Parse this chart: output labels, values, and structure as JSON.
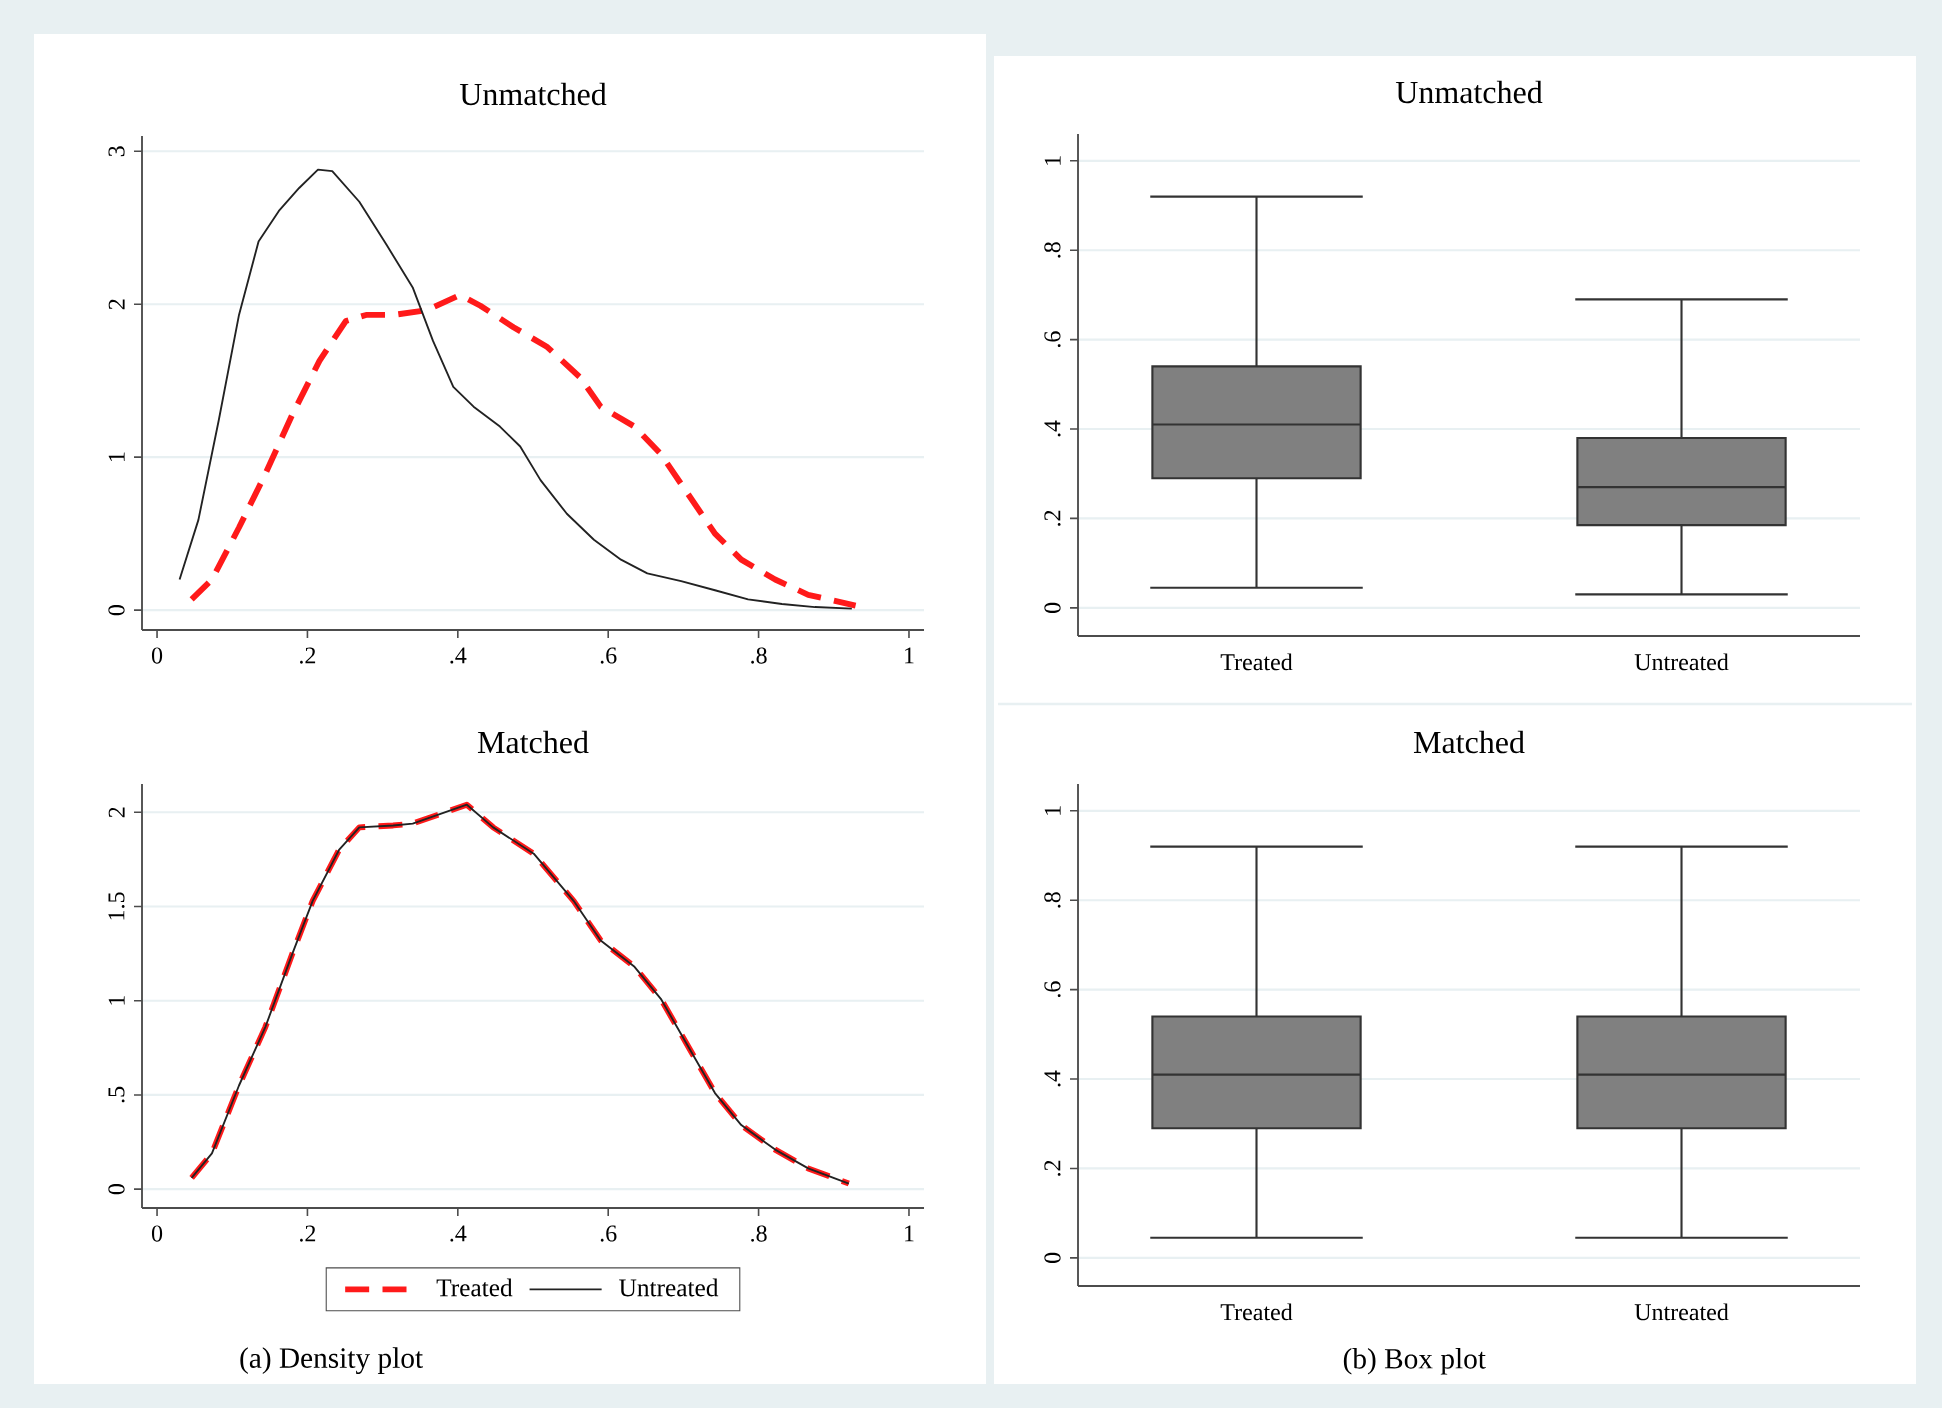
{
  "chart_data": [
    {
      "type": "line",
      "title": "Unmatched",
      "xlim": [
        -0.02,
        1.02
      ],
      "ylim": [
        -0.13,
        3.1
      ],
      "xticks": [
        0,
        {
          "value": 0.2,
          "label": ".2"
        },
        {
          "value": 0.4,
          "label": ".4"
        },
        {
          "value": 0.6,
          "label": ".6"
        },
        {
          "value": 0.8,
          "label": ".8"
        },
        1
      ],
      "yticks": [
        0,
        1,
        2,
        3
      ],
      "grid": "y",
      "series": [
        {
          "color": "#ff1a1a",
          "line_style": "dashed",
          "x": [
            0.046,
            0.073,
            0.109,
            0.144,
            0.18,
            0.216,
            0.251,
            0.278,
            0.314,
            0.358,
            0.403,
            0.43,
            0.474,
            0.519,
            0.563,
            0.59,
            0.635,
            0.67,
            0.706,
            0.742,
            0.777,
            0.822,
            0.866,
            0.929
          ],
          "values": [
            0.07,
            0.2,
            0.54,
            0.89,
            1.28,
            1.63,
            1.89,
            1.93,
            1.93,
            1.96,
            2.06,
            1.99,
            1.85,
            1.72,
            1.52,
            1.33,
            1.2,
            1.02,
            0.76,
            0.5,
            0.33,
            0.2,
            0.1,
            0.03
          ]
        },
        {
          "color": "#222222",
          "line_style": "solid",
          "x": [
            0.03,
            0.055,
            0.082,
            0.109,
            0.135,
            0.162,
            0.189,
            0.214,
            0.233,
            0.269,
            0.305,
            0.34,
            0.367,
            0.394,
            0.421,
            0.456,
            0.483,
            0.51,
            0.545,
            0.581,
            0.617,
            0.652,
            0.697,
            0.742,
            0.786,
            0.831,
            0.875,
            0.924
          ],
          "values": [
            0.2,
            0.59,
            1.24,
            1.93,
            2.41,
            2.61,
            2.76,
            2.88,
            2.87,
            2.67,
            2.39,
            2.11,
            1.76,
            1.46,
            1.33,
            1.2,
            1.07,
            0.85,
            0.63,
            0.46,
            0.33,
            0.24,
            0.19,
            0.13,
            0.07,
            0.04,
            0.02,
            0.01
          ]
        }
      ]
    },
    {
      "type": "line",
      "title": "Matched",
      "xlim": [
        -0.02,
        1.02
      ],
      "ylim": [
        -0.1,
        2.15
      ],
      "xticks": [
        0,
        {
          "value": 0.2,
          "label": ".2"
        },
        {
          "value": 0.4,
          "label": ".4"
        },
        {
          "value": 0.6,
          "label": ".6"
        },
        {
          "value": 0.8,
          "label": ".8"
        },
        1
      ],
      "yticks": [
        0,
        {
          "value": 0.5,
          "label": ".5"
        },
        1,
        1.5,
        2
      ],
      "grid": "y",
      "legend": "bottom",
      "annotations": [
        "(a) Density plot"
      ],
      "series": [
        {
          "name": "Treated",
          "color": "#ff1a1a",
          "line_style": "dashed",
          "x": [
            0.046,
            0.073,
            0.109,
            0.144,
            0.18,
            0.207,
            0.242,
            0.269,
            0.314,
            0.34,
            0.376,
            0.412,
            0.447,
            0.501,
            0.554,
            0.59,
            0.635,
            0.67,
            0.706,
            0.742,
            0.777,
            0.822,
            0.866,
            0.92
          ],
          "values": [
            0.06,
            0.19,
            0.55,
            0.86,
            1.25,
            1.53,
            1.8,
            1.92,
            1.93,
            1.94,
            1.99,
            2.04,
            1.92,
            1.78,
            1.53,
            1.32,
            1.18,
            1.01,
            0.76,
            0.51,
            0.34,
            0.21,
            0.11,
            0.03
          ]
        },
        {
          "name": "Untreated",
          "color": "#222222",
          "line_style": "solid",
          "x": [
            0.046,
            0.073,
            0.109,
            0.144,
            0.18,
            0.207,
            0.242,
            0.269,
            0.314,
            0.34,
            0.376,
            0.412,
            0.447,
            0.501,
            0.554,
            0.59,
            0.635,
            0.67,
            0.706,
            0.742,
            0.777,
            0.822,
            0.866,
            0.92
          ],
          "values": [
            0.06,
            0.19,
            0.55,
            0.86,
            1.25,
            1.53,
            1.8,
            1.92,
            1.93,
            1.94,
            1.99,
            2.04,
            1.92,
            1.78,
            1.53,
            1.32,
            1.18,
            1.01,
            0.76,
            0.51,
            0.34,
            0.21,
            0.11,
            0.03
          ]
        }
      ]
    },
    {
      "type": "box",
      "title": "Unmatched",
      "categories": [
        "Treated",
        "Untreated"
      ],
      "ylim": [
        -0.063,
        1.06
      ],
      "yticks": [
        0,
        {
          "value": 0.2,
          "label": ".2"
        },
        {
          "value": 0.4,
          "label": ".4"
        },
        {
          "value": 0.6,
          "label": ".6"
        },
        {
          "value": 0.8,
          "label": ".8"
        },
        1
      ],
      "grid": "y",
      "series": [
        {
          "color": "#808080",
          "boxes": [
            {
              "low": 0.045,
              "q1": 0.29,
              "median": 0.41,
              "q3": 0.54,
              "high": 0.92
            },
            {
              "low": 0.03,
              "q1": 0.185,
              "median": 0.27,
              "q3": 0.38,
              "high": 0.69
            }
          ]
        }
      ]
    },
    {
      "type": "box",
      "title": "Matched",
      "categories": [
        "Treated",
        "Untreated"
      ],
      "ylim": [
        -0.063,
        1.06
      ],
      "yticks": [
        0,
        {
          "value": 0.2,
          "label": ".2"
        },
        {
          "value": 0.4,
          "label": ".4"
        },
        {
          "value": 0.6,
          "label": ".6"
        },
        {
          "value": 0.8,
          "label": ".8"
        },
        1
      ],
      "grid": "y",
      "annotations": [
        "(b) Box plot"
      ],
      "series": [
        {
          "color": "#808080",
          "boxes": [
            {
              "low": 0.045,
              "q1": 0.29,
              "median": 0.41,
              "q3": 0.54,
              "high": 0.92
            },
            {
              "low": 0.045,
              "q1": 0.29,
              "median": 0.41,
              "q3": 0.54,
              "high": 0.92
            }
          ]
        }
      ]
    }
  ]
}
